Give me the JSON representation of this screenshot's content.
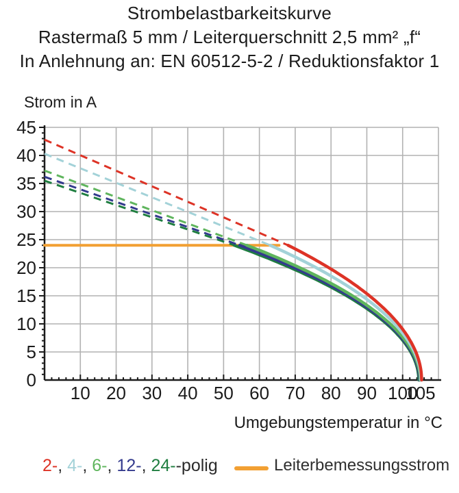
{
  "title_lines": [
    "Strombelastbarkeitskurve",
    "Rastermaß 5 mm / Leiterquerschnitt 2,5 mm² „f“",
    "In Anlehnung an: EN 60512-5-2 / Reduktionsfaktor 1"
  ],
  "chart_data": {
    "type": "line",
    "title": "Strombelastbarkeitskurve",
    "ylabel": "Strom in A",
    "xlabel": "Umgebungstemperatur in °C",
    "xlim": [
      0,
      110
    ],
    "ylim": [
      0,
      45
    ],
    "x_tick_labels": [
      10,
      20,
      30,
      40,
      50,
      60,
      70,
      80,
      90,
      100,
      105
    ],
    "y_tick_labels": [
      0,
      5,
      10,
      15,
      20,
      25,
      30,
      35,
      40,
      45
    ],
    "x_minor_tick_step": 2,
    "y_minor_tick_step": 1,
    "grid": {
      "show": true,
      "color": "#b2b2b2",
      "x_step": 10,
      "y_step": 5
    },
    "axis_color": "#1b1b1b",
    "current_limit_A": 24,
    "curve_model": "dashed: linear from (0 °C, i_at_0C) down to (knee_temp_C, 24 A); solid: T(I) = zero_temp_C - (zero_temp_C - knee_temp_C) * (I/24)^2 from 24 A to 0 A",
    "series": [
      {
        "name": "2-polig",
        "legend_label": "2-",
        "color": "#dd3326",
        "i_at_0C": 42.8,
        "knee_temp_C": 68.0,
        "zero_temp_C": 105.3,
        "readings": [
          [
            0,
            42.8
          ],
          [
            68,
            24
          ],
          [
            80,
            19.8
          ],
          [
            90,
            15.4
          ],
          [
            100,
            9.0
          ],
          [
            105.3,
            0
          ]
        ]
      },
      {
        "name": "4-polig",
        "legend_label": "4-",
        "color": "#a3d2d8",
        "i_at_0C": 40.3,
        "knee_temp_C": 63.0,
        "zero_temp_C": 105.1,
        "readings": [
          [
            0,
            40.3
          ],
          [
            63,
            24
          ],
          [
            80,
            18.5
          ],
          [
            90,
            14.4
          ],
          [
            100,
            8.4
          ],
          [
            105.1,
            0
          ]
        ]
      },
      {
        "name": "6-polig",
        "legend_label": "6-",
        "color": "#5fb55d",
        "i_at_0C": 37.3,
        "knee_temp_C": 56.5,
        "zero_temp_C": 104.9,
        "readings": [
          [
            0,
            37.3
          ],
          [
            56.5,
            24
          ],
          [
            80,
            17.2
          ],
          [
            90,
            13.3
          ],
          [
            100,
            7.6
          ],
          [
            104.9,
            0
          ]
        ]
      },
      {
        "name": "12-polig",
        "legend_label": "12-",
        "color": "#333a8d",
        "i_at_0C": 36.2,
        "knee_temp_C": 54.5,
        "zero_temp_C": 104.7,
        "readings": [
          [
            0,
            36.2
          ],
          [
            54.5,
            24
          ],
          [
            80,
            16.8
          ],
          [
            90,
            13.0
          ],
          [
            100,
            7.3
          ],
          [
            104.7,
            0
          ]
        ]
      },
      {
        "name": "24-polig",
        "legend_label": "24-",
        "color": "#1f7e40",
        "i_at_0C": 35.5,
        "knee_temp_C": 53.0,
        "zero_temp_C": 104.5,
        "readings": [
          [
            0,
            35.5
          ],
          [
            53,
            24
          ],
          [
            80,
            16.6
          ],
          [
            90,
            12.7
          ],
          [
            100,
            7.1
          ],
          [
            104.5,
            0
          ]
        ]
      }
    ],
    "rated_current": {
      "label": "Leiterbemessungsstrom",
      "value_A": 24,
      "x_start_C": 0,
      "x_end_C": 65.5,
      "color": "#f2a033"
    },
    "legend": {
      "separator": ", ",
      "poles_suffix": "-polig",
      "position": "bottom"
    }
  }
}
